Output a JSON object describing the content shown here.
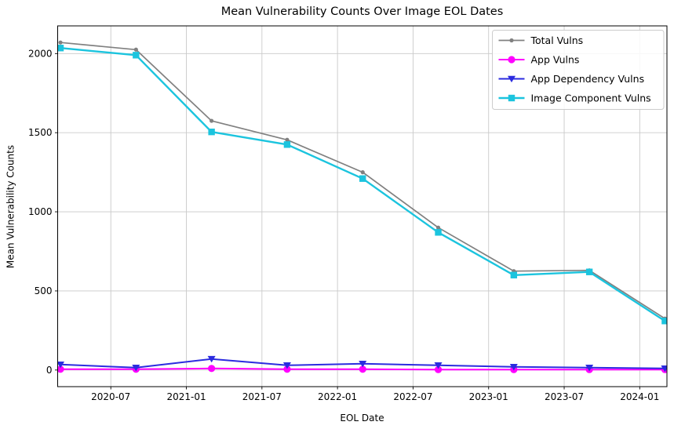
{
  "chart_data": {
    "type": "line",
    "title": "Mean Vulnerability Counts Over Image EOL Dates",
    "xlabel": "EOL Date",
    "ylabel": "Mean Vulnerability Counts",
    "x": [
      "2020-03",
      "2020-09",
      "2021-03",
      "2021-09",
      "2022-03",
      "2022-09",
      "2023-03",
      "2023-09",
      "2024-03"
    ],
    "x_tick_labels": [
      "2020-07",
      "2021-01",
      "2021-07",
      "2022-01",
      "2022-07",
      "2023-01",
      "2023-07",
      "2024-01"
    ],
    "y_ticks": [
      0,
      500,
      1000,
      1500,
      2000
    ],
    "ylim": [
      -105,
      2175
    ],
    "grid": true,
    "legend_position": "upper right",
    "series": [
      {
        "name": "Total Vulns",
        "color": "#808080",
        "marker": "circle-small",
        "values": [
          2070,
          2025,
          1575,
          1455,
          1250,
          900,
          625,
          630,
          325
        ]
      },
      {
        "name": "App Vulns",
        "color": "#ff00ff",
        "marker": "circle",
        "values": [
          5,
          5,
          10,
          5,
          5,
          3,
          3,
          3,
          3
        ]
      },
      {
        "name": "App Dependency Vulns",
        "color": "#2b2bdf",
        "marker": "triangle-down",
        "values": [
          35,
          15,
          70,
          30,
          40,
          30,
          20,
          15,
          10
        ]
      },
      {
        "name": "Image Component Vulns",
        "color": "#1bc4de",
        "marker": "square",
        "values": [
          2035,
          1990,
          1505,
          1425,
          1210,
          870,
          600,
          620,
          310
        ]
      }
    ],
    "colors": {
      "grid": "#c9c9c9",
      "spine": "#000000",
      "text": "#000000",
      "legend_border": "#cccccc",
      "legend_bg": "#ffffff"
    }
  }
}
